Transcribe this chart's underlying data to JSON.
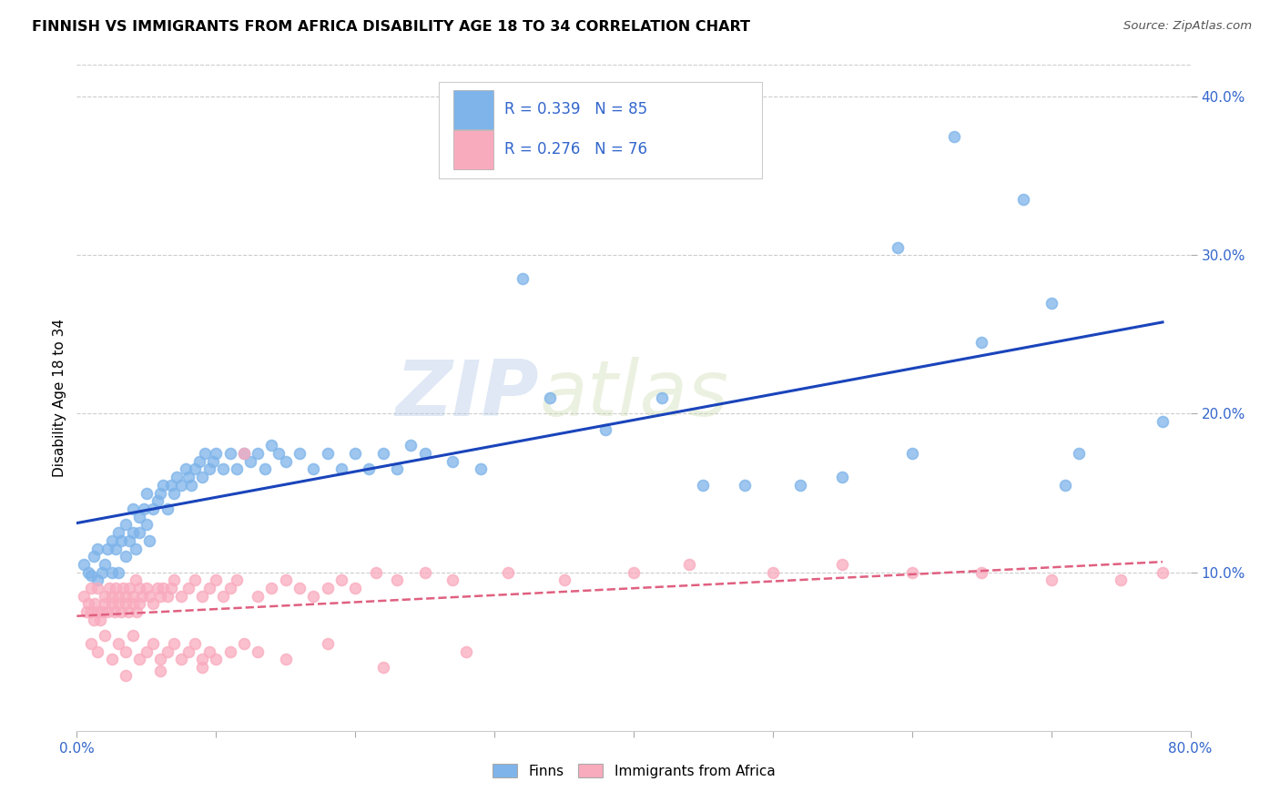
{
  "title": "FINNISH VS IMMIGRANTS FROM AFRICA DISABILITY AGE 18 TO 34 CORRELATION CHART",
  "source": "Source: ZipAtlas.com",
  "ylabel": "Disability Age 18 to 34",
  "color_finns": "#7EB4EA",
  "color_africa": "#F9ABBE",
  "trendline_finns_color": "#1A44BB",
  "trendline_africa_color": "#E06080",
  "xlim": [
    0.0,
    0.8
  ],
  "ylim": [
    0.0,
    0.42
  ],
  "ytick_vals": [
    0.1,
    0.2,
    0.3,
    0.4
  ],
  "ytick_labels": [
    "10.0%",
    "20.0%",
    "30.0%",
    "40.0%"
  ],
  "xtick_vals": [
    0.0,
    0.1,
    0.2,
    0.3,
    0.4,
    0.5,
    0.6,
    0.7,
    0.8
  ],
  "legend_r1": "R = 0.339",
  "legend_n1": "N = 85",
  "legend_r2": "R = 0.276",
  "legend_n2": "N = 76",
  "finns_x": [
    0.005,
    0.008,
    0.01,
    0.012,
    0.015,
    0.015,
    0.018,
    0.02,
    0.022,
    0.025,
    0.025,
    0.028,
    0.03,
    0.03,
    0.032,
    0.035,
    0.035,
    0.038,
    0.04,
    0.04,
    0.042,
    0.045,
    0.045,
    0.048,
    0.05,
    0.05,
    0.052,
    0.055,
    0.058,
    0.06,
    0.062,
    0.065,
    0.068,
    0.07,
    0.072,
    0.075,
    0.078,
    0.08,
    0.082,
    0.085,
    0.088,
    0.09,
    0.092,
    0.095,
    0.098,
    0.1,
    0.105,
    0.11,
    0.115,
    0.12,
    0.125,
    0.13,
    0.135,
    0.14,
    0.145,
    0.15,
    0.16,
    0.17,
    0.18,
    0.19,
    0.2,
    0.21,
    0.22,
    0.23,
    0.24,
    0.25,
    0.27,
    0.29,
    0.32,
    0.34,
    0.38,
    0.42,
    0.45,
    0.48,
    0.52,
    0.55,
    0.59,
    0.6,
    0.63,
    0.65,
    0.68,
    0.7,
    0.71,
    0.72,
    0.78
  ],
  "finns_y": [
    0.105,
    0.1,
    0.098,
    0.11,
    0.095,
    0.115,
    0.1,
    0.105,
    0.115,
    0.1,
    0.12,
    0.115,
    0.1,
    0.125,
    0.12,
    0.11,
    0.13,
    0.12,
    0.125,
    0.14,
    0.115,
    0.135,
    0.125,
    0.14,
    0.13,
    0.15,
    0.12,
    0.14,
    0.145,
    0.15,
    0.155,
    0.14,
    0.155,
    0.15,
    0.16,
    0.155,
    0.165,
    0.16,
    0.155,
    0.165,
    0.17,
    0.16,
    0.175,
    0.165,
    0.17,
    0.175,
    0.165,
    0.175,
    0.165,
    0.175,
    0.17,
    0.175,
    0.165,
    0.18,
    0.175,
    0.17,
    0.175,
    0.165,
    0.175,
    0.165,
    0.175,
    0.165,
    0.175,
    0.165,
    0.18,
    0.175,
    0.17,
    0.165,
    0.285,
    0.21,
    0.19,
    0.21,
    0.155,
    0.155,
    0.155,
    0.16,
    0.305,
    0.175,
    0.375,
    0.245,
    0.335,
    0.27,
    0.155,
    0.175,
    0.195
  ],
  "africa_x": [
    0.005,
    0.007,
    0.008,
    0.01,
    0.01,
    0.012,
    0.013,
    0.015,
    0.015,
    0.017,
    0.018,
    0.02,
    0.02,
    0.022,
    0.023,
    0.025,
    0.025,
    0.027,
    0.028,
    0.03,
    0.03,
    0.032,
    0.033,
    0.035,
    0.035,
    0.037,
    0.038,
    0.04,
    0.04,
    0.042,
    0.043,
    0.045,
    0.045,
    0.047,
    0.05,
    0.052,
    0.055,
    0.058,
    0.06,
    0.062,
    0.065,
    0.068,
    0.07,
    0.075,
    0.08,
    0.085,
    0.09,
    0.095,
    0.1,
    0.105,
    0.11,
    0.115,
    0.12,
    0.13,
    0.14,
    0.15,
    0.16,
    0.17,
    0.18,
    0.19,
    0.2,
    0.215,
    0.23,
    0.25,
    0.27,
    0.31,
    0.35,
    0.4,
    0.44,
    0.5,
    0.55,
    0.6,
    0.65,
    0.7,
    0.75,
    0.78
  ],
  "africa_y": [
    0.085,
    0.075,
    0.08,
    0.075,
    0.09,
    0.07,
    0.08,
    0.075,
    0.09,
    0.07,
    0.075,
    0.08,
    0.085,
    0.075,
    0.09,
    0.08,
    0.085,
    0.075,
    0.09,
    0.08,
    0.085,
    0.075,
    0.09,
    0.08,
    0.085,
    0.075,
    0.09,
    0.08,
    0.085,
    0.095,
    0.075,
    0.09,
    0.08,
    0.085,
    0.09,
    0.085,
    0.08,
    0.09,
    0.085,
    0.09,
    0.085,
    0.09,
    0.095,
    0.085,
    0.09,
    0.095,
    0.085,
    0.09,
    0.095,
    0.085,
    0.09,
    0.095,
    0.175,
    0.085,
    0.09,
    0.095,
    0.09,
    0.085,
    0.09,
    0.095,
    0.09,
    0.1,
    0.095,
    0.1,
    0.095,
    0.1,
    0.095,
    0.1,
    0.105,
    0.1,
    0.105,
    0.1,
    0.1,
    0.095,
    0.095,
    0.1
  ],
  "africa_low_x": [
    0.01,
    0.015,
    0.02,
    0.025,
    0.03,
    0.035,
    0.04,
    0.045,
    0.05,
    0.055,
    0.06,
    0.065,
    0.07,
    0.075,
    0.08,
    0.085,
    0.09,
    0.095,
    0.1,
    0.11,
    0.12,
    0.13,
    0.15,
    0.18,
    0.22,
    0.28,
    0.035,
    0.06,
    0.09
  ],
  "africa_low_y": [
    0.055,
    0.05,
    0.06,
    0.045,
    0.055,
    0.05,
    0.06,
    0.045,
    0.05,
    0.055,
    0.045,
    0.05,
    0.055,
    0.045,
    0.05,
    0.055,
    0.045,
    0.05,
    0.045,
    0.05,
    0.055,
    0.05,
    0.045,
    0.055,
    0.04,
    0.05,
    0.035,
    0.038,
    0.04
  ]
}
